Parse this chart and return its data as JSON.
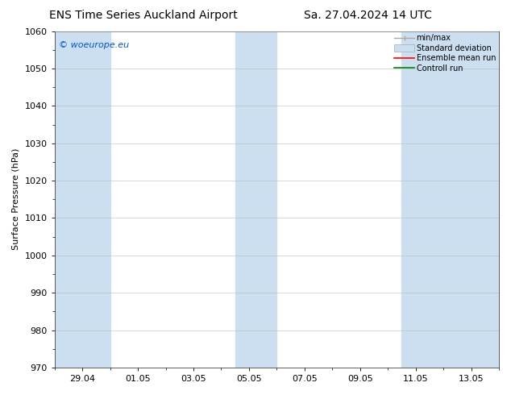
{
  "title_left": "ENS Time Series Auckland Airport",
  "title_right": "Sa. 27.04.2024 14 UTC",
  "ylabel": "Surface Pressure (hPa)",
  "ylim": [
    970,
    1060
  ],
  "yticks": [
    970,
    980,
    990,
    1000,
    1010,
    1020,
    1030,
    1040,
    1050,
    1060
  ],
  "watermark": "© woeurope.eu",
  "watermark_color": "#0055cc",
  "bg_color": "#ffffff",
  "plot_bg_color": "#ffffff",
  "shaded_band_color": "#ccdff0",
  "legend_entries": [
    "min/max",
    "Standard deviation",
    "Ensemble mean run",
    "Controll run"
  ],
  "legend_minmax_color": "#aaaaaa",
  "legend_std_color": "#ccdff0",
  "legend_ensemble_color": "#ff0000",
  "legend_control_color": "#008800",
  "xtick_labels": [
    "29.04",
    "01.05",
    "03.05",
    "05.05",
    "07.05",
    "09.05",
    "11.05",
    "13.05"
  ],
  "xtick_positions": [
    1,
    3,
    5,
    7,
    9,
    11,
    13,
    15
  ],
  "xmin": 0,
  "xmax": 16,
  "shaded_ranges": [
    [
      0.0,
      2.0
    ],
    [
      6.5,
      8.0
    ],
    [
      12.5,
      16.0
    ]
  ],
  "title_fontsize": 10,
  "axis_fontsize": 8,
  "tick_fontsize": 8,
  "watermark_fontsize": 8
}
